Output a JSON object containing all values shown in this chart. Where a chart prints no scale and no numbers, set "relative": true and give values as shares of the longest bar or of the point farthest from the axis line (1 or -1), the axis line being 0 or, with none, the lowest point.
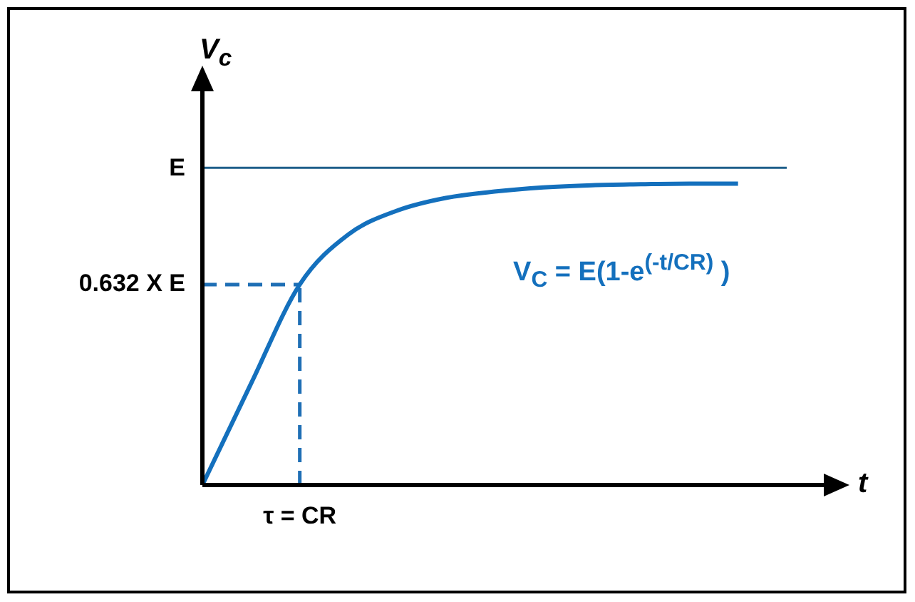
{
  "chart_data": {
    "type": "line",
    "relative": true,
    "ylabel": "V$_{c}$",
    "categories": [
      null,
      null,
      null,
      null,
      null,
      null,
      null,
      null,
      null,
      null,
      null,
      null,
      null
    ],
    "series": [
      {
        "color": "#1470bd",
        "values": [
          0,
          0.32,
          0.632,
          0.79,
          0.865,
          0.905,
          0.925,
          0.938,
          0.945,
          0.948,
          0.95,
          0.95,
          null
        ]
      },
      {
        "color": "#1f5f8b",
        "values": [
          1,
          1,
          1,
          1,
          1,
          1,
          1,
          1,
          1,
          1,
          1,
          1,
          1
        ]
      }
    ],
    "ref_lines": [
      {
        "axis": "y",
        "value": 0.632,
        "color": "#1f6fb5",
        "line_style": "dashed"
      }
    ],
    "annotations": [
      "V$_{C}$ = E(1-e$^{(-t/CR)}$ )",
      "t",
      "E",
      "0.632 X E",
      "τ = CR"
    ],
    "grid": false,
    "legend": false,
    "marker": "none",
    "line_style": "solid"
  }
}
